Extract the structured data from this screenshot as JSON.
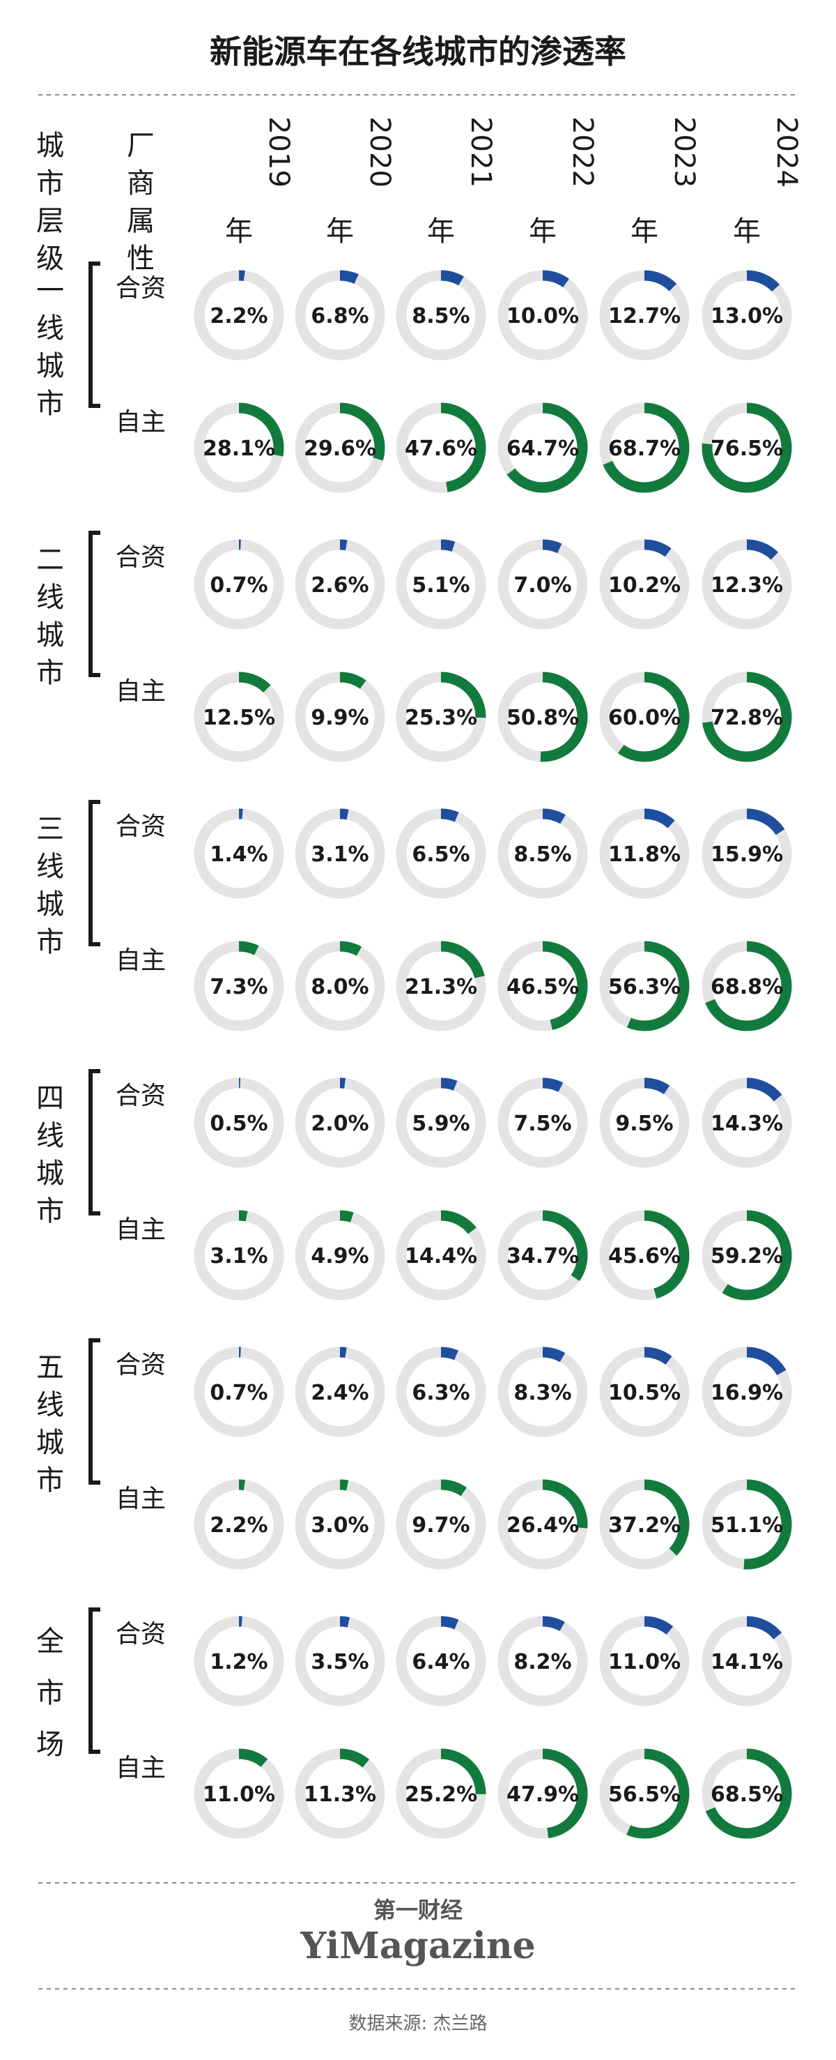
{
  "title": "新能源车在各线城市的渗透率",
  "header": {
    "tier_label": "城市层级",
    "maker_label": "厂商属性"
  },
  "footer": {
    "logo_cn": "第一财经",
    "logo_en": "YiMagazine",
    "source": "数据来源: 杰兰路"
  },
  "colors": {
    "jv": "#1f4e9e",
    "domestic": "#127a3c",
    "track": "#e4e4e4",
    "text": "#1a1a1a",
    "divider": "#8a8a8a",
    "footer_text": "#666666"
  },
  "chart_data": {
    "type": "donut-grid",
    "title": "新能源车在各线城市的渗透率",
    "unit": "%",
    "years": [
      "2019年",
      "2020年",
      "2021年",
      "2022年",
      "2023年",
      "2024年"
    ],
    "groups": [
      {
        "tier": "一线城市",
        "rows": [
          {
            "maker": "合资",
            "values": [
              2.2,
              6.8,
              8.5,
              10.0,
              12.7,
              13.0
            ]
          },
          {
            "maker": "自主",
            "values": [
              28.1,
              29.6,
              47.6,
              64.7,
              68.7,
              76.5
            ]
          }
        ]
      },
      {
        "tier": "二线城市",
        "rows": [
          {
            "maker": "合资",
            "values": [
              0.7,
              2.6,
              5.1,
              7.0,
              10.2,
              12.3
            ]
          },
          {
            "maker": "自主",
            "values": [
              12.5,
              9.9,
              25.3,
              50.8,
              60.0,
              72.8
            ]
          }
        ]
      },
      {
        "tier": "三线城市",
        "rows": [
          {
            "maker": "合资",
            "values": [
              1.4,
              3.1,
              6.5,
              8.5,
              11.8,
              15.9
            ]
          },
          {
            "maker": "自主",
            "values": [
              7.3,
              8.0,
              21.3,
              46.5,
              56.3,
              68.8
            ]
          }
        ]
      },
      {
        "tier": "四线城市",
        "rows": [
          {
            "maker": "合资",
            "values": [
              0.5,
              2.0,
              5.9,
              7.5,
              9.5,
              14.3
            ]
          },
          {
            "maker": "自主",
            "values": [
              3.1,
              4.9,
              14.4,
              34.7,
              45.6,
              59.2
            ]
          }
        ]
      },
      {
        "tier": "五线城市",
        "rows": [
          {
            "maker": "合资",
            "values": [
              0.7,
              2.4,
              6.3,
              8.3,
              10.5,
              16.9
            ]
          },
          {
            "maker": "自主",
            "values": [
              2.2,
              3.0,
              9.7,
              26.4,
              37.2,
              51.1
            ]
          }
        ]
      },
      {
        "tier": "全市场",
        "rows": [
          {
            "maker": "合资",
            "values": [
              1.2,
              3.5,
              6.4,
              8.2,
              11.0,
              14.1
            ]
          },
          {
            "maker": "自主",
            "values": [
              11.0,
              11.3,
              25.2,
              47.9,
              56.5,
              68.5
            ]
          }
        ]
      }
    ]
  }
}
